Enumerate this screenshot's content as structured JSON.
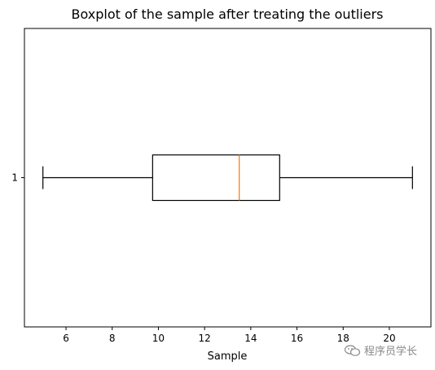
{
  "chart_data": {
    "type": "boxplot",
    "orientation": "horizontal",
    "title": "Boxplot of the sample after treating the outliers",
    "xlabel": "Sample",
    "ylabel": "",
    "xlim": [
      4.2,
      21.8
    ],
    "xticks": [
      6,
      8,
      10,
      12,
      14,
      16,
      18,
      20
    ],
    "yticks": [
      "1"
    ],
    "boxes": [
      {
        "category": "1",
        "whisker_low": 5.0,
        "q1": 9.75,
        "median": 13.5,
        "q3": 15.25,
        "whisker_high": 21.0
      }
    ],
    "colors": {
      "box": "#000000",
      "median": "#ff7f0e"
    }
  },
  "watermark": {
    "text": "程序员学长",
    "icon": "wechat-icon"
  }
}
